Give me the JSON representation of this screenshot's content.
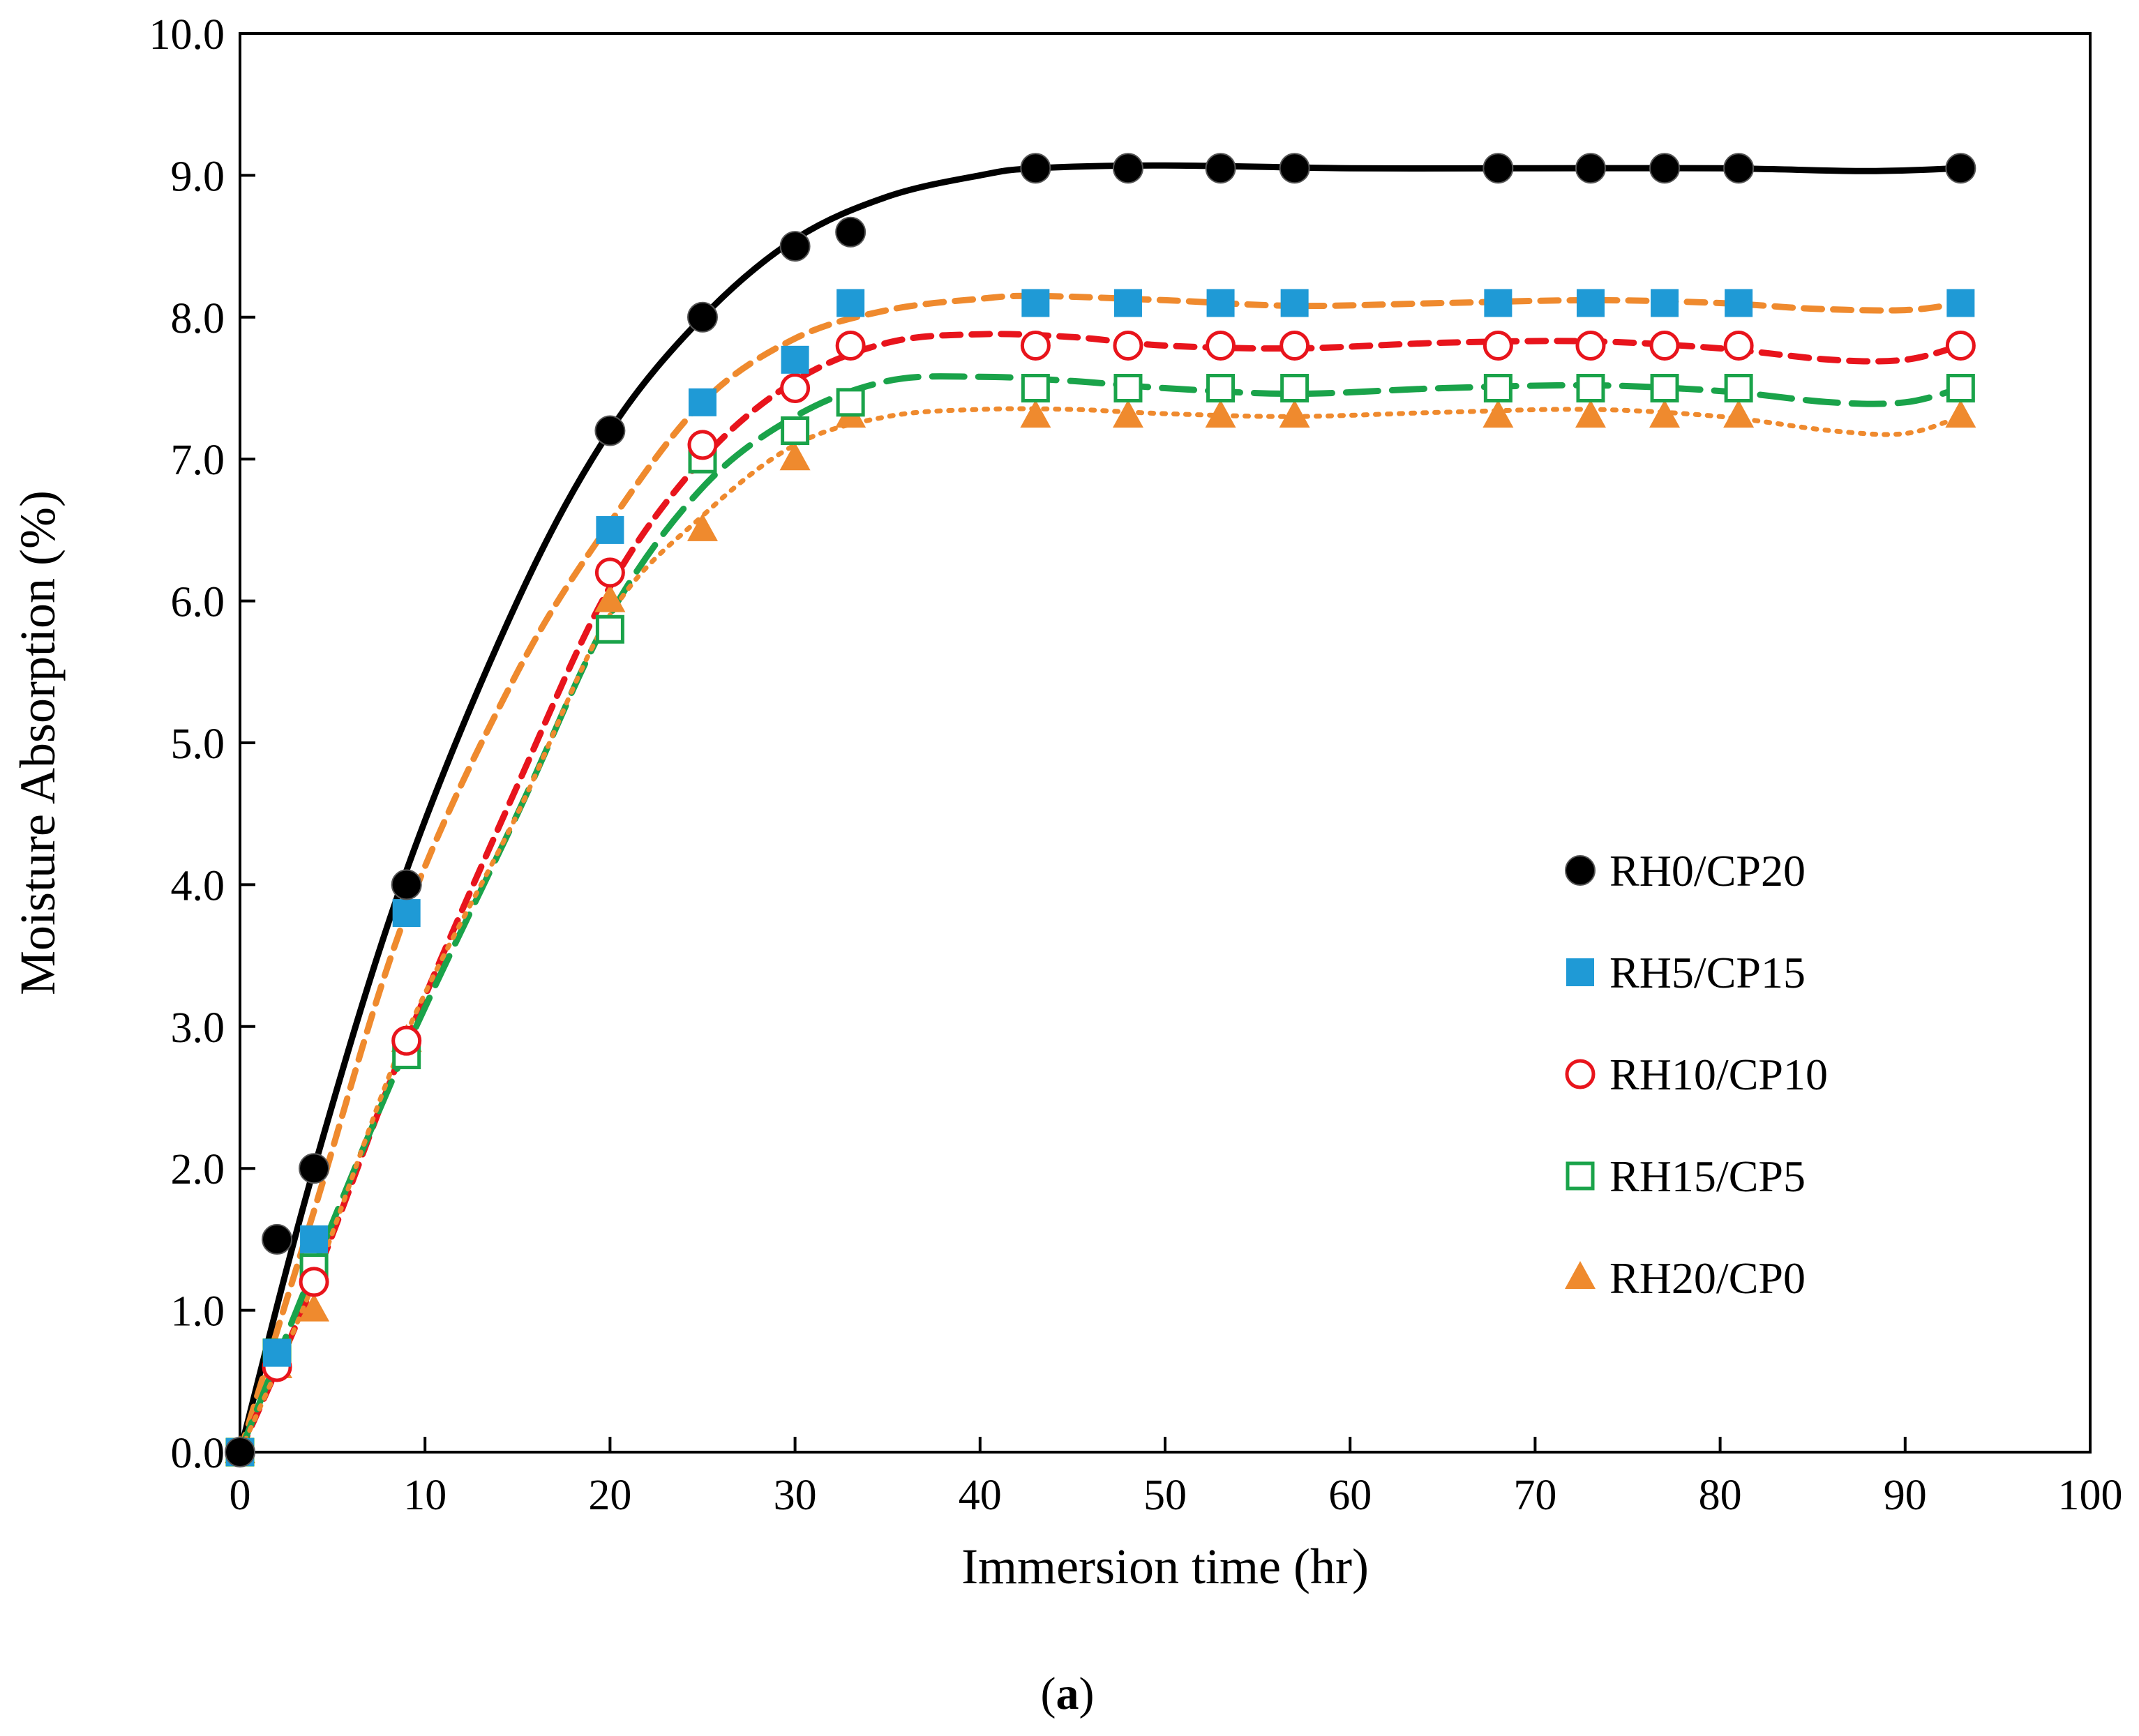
{
  "chart_data": {
    "type": "scatter",
    "xlabel": "Immersion time (hr)",
    "ylabel": "Moisture Absorption (%)",
    "caption": {
      "open": "(",
      "letter": "a",
      "close": ")"
    },
    "xlim": [
      0,
      100
    ],
    "ylim": [
      0,
      10
    ],
    "x_ticks": [
      "0",
      "10",
      "20",
      "30",
      "40",
      "50",
      "60",
      "70",
      "80",
      "90",
      "100"
    ],
    "y_ticks": [
      "0.0",
      "1.0",
      "2.0",
      "3.0",
      "4.0",
      "5.0",
      "6.0",
      "7.0",
      "8.0",
      "9.0",
      "10.0"
    ],
    "x": [
      0,
      2,
      4,
      9,
      20,
      25,
      30,
      33,
      43,
      48,
      53,
      57,
      68,
      73,
      77,
      81,
      93
    ],
    "grid": false,
    "legend_position": "right",
    "series": [
      {
        "name": "RH0/CP20",
        "marker": "filled-circle",
        "color": "#000000",
        "values": [
          0,
          1.5,
          2.0,
          4.0,
          7.2,
          8.0,
          8.5,
          8.6,
          9.05,
          9.05,
          9.05,
          9.05,
          9.05,
          9.05,
          9.05,
          9.05,
          9.05
        ],
        "trend": {
          "style": "solid",
          "color": "#000000",
          "x": [
            0,
            4,
            9,
            15,
            20,
            25,
            30,
            35,
            40,
            43,
            50,
            60,
            70,
            80,
            88,
            93
          ],
          "y": [
            0,
            2.0,
            4.1,
            6.0,
            7.2,
            8.0,
            8.55,
            8.85,
            9.0,
            9.05,
            9.07,
            9.05,
            9.05,
            9.05,
            9.03,
            9.05
          ]
        }
      },
      {
        "name": "RH5/CP15",
        "marker": "filled-square",
        "color": "#1f9ad6",
        "values": [
          0,
          0.7,
          1.5,
          3.8,
          6.5,
          7.4,
          7.7,
          8.1,
          8.1,
          8.1,
          8.1,
          8.1,
          8.1,
          8.1,
          8.1,
          8.1,
          8.1
        ],
        "trend": {
          "style": "dashed",
          "color": "#ef8a2e",
          "x": [
            0,
            4,
            9,
            15,
            20,
            25,
            30,
            35,
            40,
            43,
            50,
            57,
            65,
            73,
            80,
            85,
            90,
            93
          ],
          "y": [
            0,
            1.7,
            3.8,
            5.5,
            6.55,
            7.4,
            7.85,
            8.05,
            8.13,
            8.15,
            8.12,
            8.08,
            8.1,
            8.12,
            8.1,
            8.06,
            8.05,
            8.1
          ]
        }
      },
      {
        "name": "RH10/CP10",
        "marker": "open-circle",
        "color": "#e8141c",
        "values": [
          0,
          0.6,
          1.2,
          2.9,
          6.2,
          7.1,
          7.5,
          7.8,
          7.8,
          7.8,
          7.8,
          7.8,
          7.8,
          7.8,
          7.8,
          7.8,
          7.8
        ],
        "trend": {
          "style": "dashed",
          "color": "#e8141c",
          "x": [
            0,
            4,
            9,
            15,
            20,
            25,
            30,
            35,
            40,
            45,
            50,
            57,
            65,
            73,
            80,
            86,
            90,
            93
          ],
          "y": [
            0,
            1.2,
            2.9,
            4.7,
            6.1,
            7.0,
            7.55,
            7.82,
            7.88,
            7.86,
            7.8,
            7.78,
            7.82,
            7.83,
            7.78,
            7.7,
            7.7,
            7.8
          ]
        }
      },
      {
        "name": "RH15/CP5",
        "marker": "open-square",
        "color": "#1aa34a",
        "values": [
          0,
          0.7,
          1.3,
          2.8,
          5.8,
          7.0,
          7.2,
          7.4,
          7.5,
          7.5,
          7.5,
          7.5,
          7.5,
          7.5,
          7.5,
          7.5,
          7.5
        ],
        "trend": {
          "style": "long-dash",
          "color": "#1aa34a",
          "x": [
            0,
            4,
            9,
            15,
            20,
            25,
            30,
            35,
            40,
            45,
            50,
            57,
            65,
            73,
            80,
            86,
            90,
            93
          ],
          "y": [
            0,
            1.3,
            2.85,
            4.5,
            5.9,
            6.8,
            7.3,
            7.55,
            7.58,
            7.55,
            7.5,
            7.46,
            7.5,
            7.52,
            7.48,
            7.4,
            7.4,
            7.5
          ]
        }
      },
      {
        "name": "RH20/CP0",
        "marker": "filled-triangle",
        "color": "#ef8a2e",
        "values": [
          0,
          0.6,
          1.0,
          2.9,
          6.0,
          6.5,
          7.0,
          7.3,
          7.3,
          7.3,
          7.3,
          7.3,
          7.3,
          7.3,
          7.3,
          7.3,
          7.3
        ],
        "trend": {
          "style": "dotted",
          "color": "#ef8a2e",
          "x": [
            0,
            4,
            9,
            15,
            20,
            25,
            30,
            35,
            40,
            45,
            50,
            57,
            65,
            73,
            80,
            86,
            90,
            93
          ],
          "y": [
            0,
            1.2,
            2.95,
            4.5,
            5.9,
            6.6,
            7.1,
            7.3,
            7.35,
            7.35,
            7.32,
            7.3,
            7.33,
            7.35,
            7.3,
            7.2,
            7.18,
            7.3
          ]
        }
      }
    ]
  }
}
